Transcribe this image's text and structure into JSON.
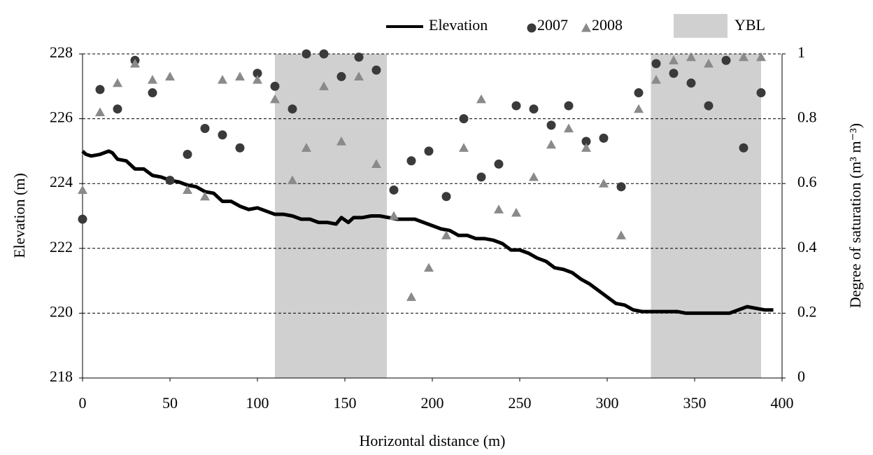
{
  "chart_data": {
    "type": "combo",
    "xlabel": "Horizontal distance (m)",
    "ylabel": "Elevation (m)",
    "y2label": "Degree of saturation (m³ m⁻³)",
    "xlim": [
      0,
      400
    ],
    "xticks": [
      0,
      50,
      100,
      150,
      200,
      250,
      300,
      350,
      400
    ],
    "ylim": [
      218,
      228
    ],
    "yticks": [
      218,
      220,
      222,
      224,
      226,
      228
    ],
    "y2lim": [
      0,
      1
    ],
    "y2ticks": [
      0,
      0.2,
      0.4,
      0.6,
      0.8,
      1
    ],
    "grid": true,
    "legend": "top",
    "bands": {
      "name": "YBL",
      "color": "#c4c4c4",
      "ranges": [
        [
          110,
          174
        ],
        [
          325,
          388
        ]
      ]
    },
    "series": [
      {
        "name": "Elevation",
        "type": "line",
        "color": "#000000",
        "x": [
          0,
          2,
          5,
          10,
          15,
          17,
          20,
          25,
          30,
          35,
          40,
          45,
          50,
          55,
          60,
          65,
          70,
          75,
          80,
          85,
          90,
          95,
          100,
          105,
          110,
          115,
          120,
          125,
          130,
          135,
          140,
          145,
          148,
          152,
          155,
          160,
          165,
          170,
          175,
          180,
          185,
          190,
          195,
          200,
          205,
          210,
          215,
          220,
          225,
          230,
          235,
          240,
          245,
          250,
          255,
          260,
          265,
          270,
          275,
          280,
          285,
          290,
          295,
          300,
          305,
          310,
          315,
          320,
          325,
          330,
          335,
          340,
          345,
          350,
          360,
          370,
          375,
          380,
          385,
          390,
          395
        ],
        "values": [
          225.0,
          224.9,
          224.85,
          224.9,
          225.0,
          224.95,
          224.75,
          224.7,
          224.45,
          224.45,
          224.25,
          224.2,
          224.1,
          224.05,
          223.95,
          223.9,
          223.75,
          223.7,
          223.45,
          223.45,
          223.3,
          223.2,
          223.25,
          223.15,
          223.05,
          223.05,
          223.0,
          222.9,
          222.9,
          222.8,
          222.8,
          222.75,
          222.95,
          222.8,
          222.95,
          222.95,
          223.0,
          223.0,
          222.95,
          222.9,
          222.9,
          222.9,
          222.8,
          222.7,
          222.6,
          222.55,
          222.4,
          222.4,
          222.3,
          222.3,
          222.25,
          222.15,
          221.95,
          221.95,
          221.85,
          221.7,
          221.6,
          221.4,
          221.35,
          221.25,
          221.05,
          220.9,
          220.7,
          220.5,
          220.3,
          220.25,
          220.1,
          220.05,
          220.05,
          220.05,
          220.05,
          220.05,
          220.0,
          220.0,
          220.0,
          220.0,
          220.1,
          220.2,
          220.15,
          220.1,
          220.1
        ]
      },
      {
        "name": "2007",
        "type": "scatter",
        "marker": "circle",
        "axis": "y2",
        "color": "#3a3a3a",
        "x": [
          0,
          10,
          20,
          30,
          40,
          50,
          60,
          70,
          80,
          90,
          100,
          110,
          120,
          128,
          138,
          148,
          158,
          168,
          178,
          188,
          198,
          208,
          218,
          228,
          238,
          248,
          258,
          268,
          278,
          288,
          298,
          308,
          318,
          328,
          338,
          348,
          358,
          368,
          378,
          388
        ],
        "values": [
          0.49,
          0.89,
          0.83,
          0.98,
          0.88,
          0.61,
          0.69,
          0.77,
          0.75,
          0.71,
          0.94,
          0.9,
          0.83,
          1.0,
          1.0,
          0.93,
          0.99,
          0.95,
          0.58,
          0.67,
          0.7,
          0.56,
          0.8,
          0.62,
          0.66,
          0.84,
          0.83,
          0.78,
          0.84,
          0.73,
          0.74,
          0.59,
          0.88,
          0.97,
          0.94,
          0.91,
          0.84,
          0.98,
          0.71,
          0.88
        ]
      },
      {
        "name": "2008",
        "type": "scatter",
        "marker": "triangle",
        "axis": "y2",
        "color": "#8a8a8a",
        "x": [
          0,
          10,
          20,
          30,
          40,
          50,
          60,
          70,
          80,
          90,
          100,
          110,
          120,
          128,
          138,
          148,
          158,
          168,
          178,
          188,
          198,
          208,
          218,
          228,
          238,
          248,
          258,
          268,
          278,
          288,
          298,
          308,
          318,
          328,
          338,
          348,
          358,
          378,
          388
        ],
        "values": [
          0.58,
          0.82,
          0.91,
          0.97,
          0.92,
          0.93,
          0.58,
          0.56,
          0.92,
          0.93,
          0.92,
          0.86,
          0.61,
          0.71,
          0.9,
          0.73,
          0.93,
          0.66,
          0.5,
          0.25,
          0.34,
          0.44,
          0.71,
          0.86,
          0.52,
          0.51,
          0.62,
          0.72,
          0.77,
          0.71,
          0.6,
          0.44,
          0.83,
          0.92,
          0.98,
          0.99,
          0.97,
          0.99,
          0.99
        ]
      }
    ]
  }
}
